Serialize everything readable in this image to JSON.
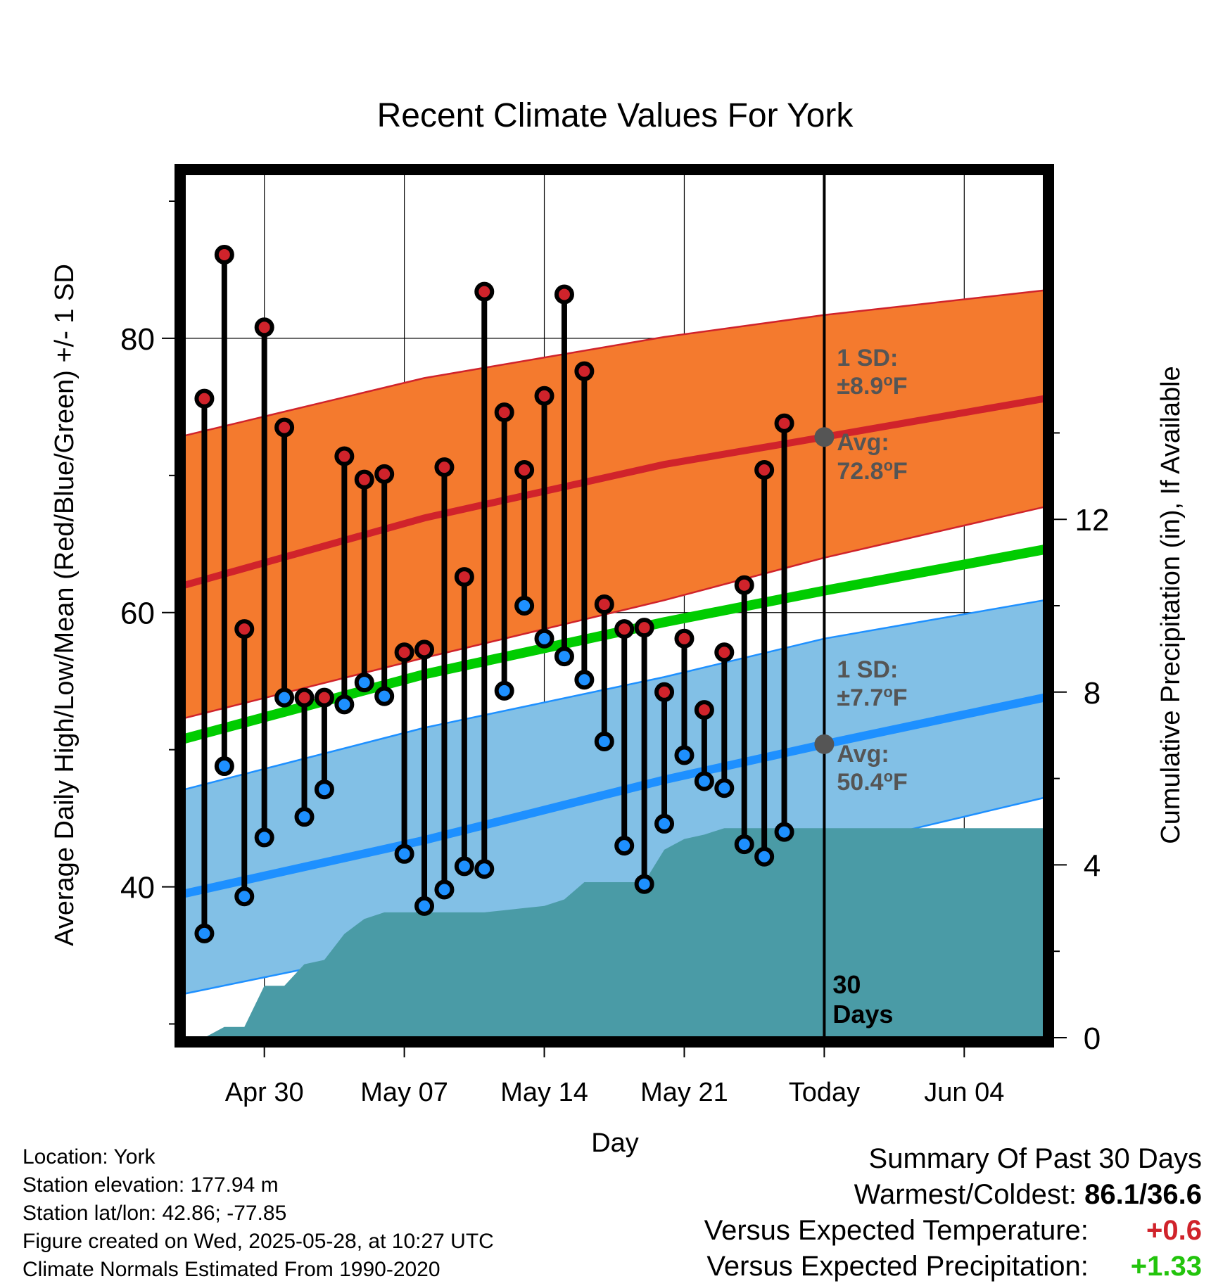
{
  "title": "Recent Climate Values For York",
  "xlabel": "Day",
  "ylabel": "Average Daily High/Low/Mean (Red/Blue/Green) +/- 1 SD",
  "y2label": "Cumulative Precipitation (in), If Available",
  "high_band": {
    "sd_label": "1 SD:",
    "sd_value": "±8.9",
    "avg_label": "Avg:",
    "avg_value": "72.8",
    "unit": "oF"
  },
  "low_band": {
    "sd_label": "1 SD:",
    "sd_value": "±7.7",
    "avg_label": "Avg:",
    "avg_value": "50.4",
    "unit": "oF"
  },
  "days_label": [
    "30",
    "Days"
  ],
  "info": [
    "Location: York",
    "Station elevation: 177.94 m",
    "Station lat/lon: 42.86; -77.85",
    "Figure created on Wed, 2025-05-28, at 10:27 UTC",
    "Climate Normals Estimated From 1990-2020"
  ],
  "summary": {
    "heading": "Summary Of Past 30 Days",
    "warm_cold_label": "Warmest/Coldest:",
    "warm_cold_value": "86.1/36.6",
    "temp_label": "Versus Expected Temperature:",
    "temp_value": "+0.6",
    "precip_label": "Versus Expected Precipitation:",
    "precip_value": "+1.33"
  },
  "colors": {
    "high": "#d0232b",
    "low": "#1e90ff",
    "mean": "#00cc00",
    "high_band": "#f47a2e",
    "low_band": "#82c0e6",
    "precip": "#4a9ba6",
    "marker_gray": "#555555"
  },
  "chart_data": {
    "type": "line",
    "x_range": [
      "2025-04-26",
      "2025-06-08"
    ],
    "xticks": [
      "Apr 30",
      "May 07",
      "May 14",
      "May 21",
      "Today",
      "Jun 04"
    ],
    "today": "2025-05-28",
    "ylim": [
      29,
      92
    ],
    "yticks": [
      40,
      60,
      80
    ],
    "y2lim": [
      0,
      20
    ],
    "y2ticks": [
      0,
      4,
      8,
      12
    ],
    "normals": {
      "dates": [
        "2025-04-26",
        "2025-05-08",
        "2025-05-20",
        "2025-05-28",
        "2025-06-08"
      ],
      "high_avg": [
        62.0,
        66.9,
        70.8,
        72.8,
        75.6
      ],
      "high_upper": [
        72.9,
        77.1,
        80.1,
        81.7,
        83.5
      ],
      "high_lower": [
        52.3,
        56.7,
        60.9,
        64.0,
        67.7
      ],
      "mean_avg": [
        50.8,
        55.5,
        59.3,
        61.6,
        64.6
      ],
      "low_avg": [
        39.5,
        43.4,
        47.8,
        50.4,
        53.8
      ],
      "low_upper": [
        47.1,
        51.6,
        55.3,
        58.1,
        60.9
      ],
      "low_lower": [
        32.2,
        35.8,
        40.3,
        42.7,
        46.5
      ]
    },
    "days": [
      {
        "date": "2025-04-27",
        "high": 75.6,
        "low": 36.6
      },
      {
        "date": "2025-04-28",
        "high": 86.1,
        "low": 48.8
      },
      {
        "date": "2025-04-29",
        "high": 58.8,
        "low": 39.3
      },
      {
        "date": "2025-04-30",
        "high": 80.8,
        "low": 43.6
      },
      {
        "date": "2025-05-01",
        "high": 73.5,
        "low": 53.8
      },
      {
        "date": "2025-05-02",
        "high": 53.8,
        "low": 45.1
      },
      {
        "date": "2025-05-03",
        "high": 53.8,
        "low": 47.1
      },
      {
        "date": "2025-05-04",
        "high": 71.4,
        "low": 53.3
      },
      {
        "date": "2025-05-05",
        "high": 69.7,
        "low": 54.9
      },
      {
        "date": "2025-05-06",
        "high": 70.1,
        "low": 53.9
      },
      {
        "date": "2025-05-07",
        "high": 57.1,
        "low": 42.4
      },
      {
        "date": "2025-05-08",
        "high": 57.3,
        "low": 38.6
      },
      {
        "date": "2025-05-09",
        "high": 70.6,
        "low": 39.8
      },
      {
        "date": "2025-05-10",
        "high": 62.6,
        "low": 41.5
      },
      {
        "date": "2025-05-11",
        "high": 83.4,
        "low": 41.3
      },
      {
        "date": "2025-05-12",
        "high": 74.6,
        "low": 54.3
      },
      {
        "date": "2025-05-13",
        "high": 70.4,
        "low": 60.5
      },
      {
        "date": "2025-05-14",
        "high": 75.8,
        "low": 58.1
      },
      {
        "date": "2025-05-15",
        "high": 83.2,
        "low": 56.8
      },
      {
        "date": "2025-05-16",
        "high": 77.6,
        "low": 55.1
      },
      {
        "date": "2025-05-17",
        "high": 60.6,
        "low": 50.6
      },
      {
        "date": "2025-05-18",
        "high": 58.8,
        "low": 43.0
      },
      {
        "date": "2025-05-19",
        "high": 58.9,
        "low": 40.2
      },
      {
        "date": "2025-05-20",
        "high": 54.2,
        "low": 44.6
      },
      {
        "date": "2025-05-21",
        "high": 58.1,
        "low": 49.6
      },
      {
        "date": "2025-05-22",
        "high": 52.9,
        "low": 47.7
      },
      {
        "date": "2025-05-23",
        "high": 57.1,
        "low": 47.2
      },
      {
        "date": "2025-05-24",
        "high": 62.0,
        "low": 43.1
      },
      {
        "date": "2025-05-25",
        "high": 70.4,
        "low": 42.2
      },
      {
        "date": "2025-05-26",
        "high": 73.8,
        "low": 44.0
      }
    ],
    "precip": {
      "dates": [
        "2025-04-26",
        "2025-04-27",
        "2025-04-28",
        "2025-04-29",
        "2025-04-30",
        "2025-05-01",
        "2025-05-02",
        "2025-05-03",
        "2025-05-04",
        "2025-05-05",
        "2025-05-06",
        "2025-05-07",
        "2025-05-08",
        "2025-05-09",
        "2025-05-10",
        "2025-05-11",
        "2025-05-12",
        "2025-05-13",
        "2025-05-14",
        "2025-05-15",
        "2025-05-16",
        "2025-05-17",
        "2025-05-18",
        "2025-05-19",
        "2025-05-20",
        "2025-05-21",
        "2025-05-22",
        "2025-05-23",
        "2025-05-24",
        "2025-05-25",
        "2025-05-28",
        "2025-06-08"
      ],
      "values": [
        0.0,
        0.0,
        0.25,
        0.25,
        1.2,
        1.2,
        1.7,
        1.8,
        2.4,
        2.75,
        2.9,
        2.9,
        2.9,
        2.9,
        2.9,
        2.9,
        2.95,
        3.0,
        3.05,
        3.2,
        3.6,
        3.6,
        3.6,
        3.6,
        4.35,
        4.6,
        4.7,
        4.85,
        4.85,
        4.85,
        4.85,
        4.85
      ]
    }
  }
}
